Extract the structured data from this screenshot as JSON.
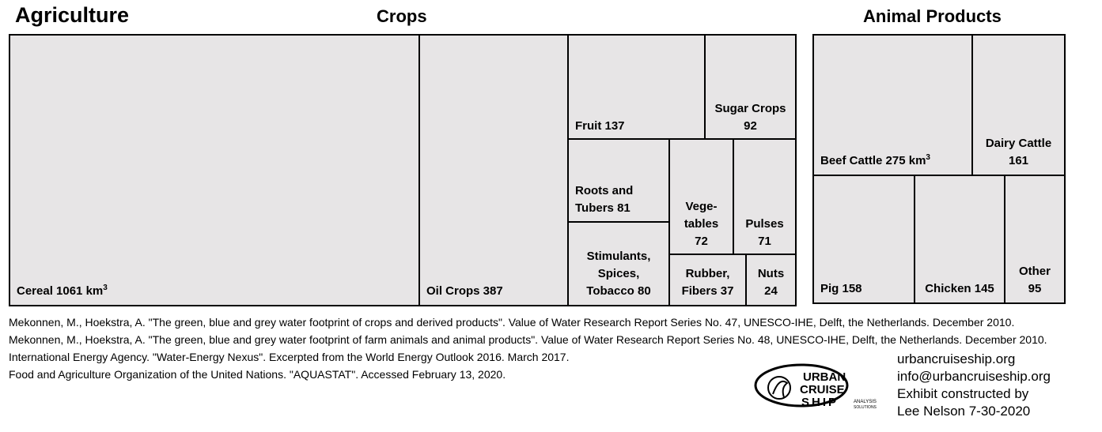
{
  "titles": {
    "agriculture": "Agriculture",
    "crops": "Crops",
    "animal_products": "Animal Products"
  },
  "unit": "km",
  "unit_exp": "3",
  "chart_data": [
    {
      "type": "treemap",
      "title": "Crops",
      "items": [
        {
          "name": "Cereal",
          "value": 1061,
          "label_lines": [
            "Cereal 1061"
          ]
        },
        {
          "name": "Oil Crops",
          "value": 387,
          "label_lines": [
            "Oil Crops 387"
          ]
        },
        {
          "name": "Fruit",
          "value": 137,
          "label_lines": [
            "Fruit 137"
          ]
        },
        {
          "name": "Sugar Crops",
          "value": 92,
          "label_lines": [
            "Sugar Crops",
            "92"
          ]
        },
        {
          "name": "Roots and Tubers",
          "value": 81,
          "label_lines": [
            "Roots and",
            "Tubers 81"
          ]
        },
        {
          "name": "Vegetables",
          "value": 72,
          "label_lines": [
            "Vege-",
            "tables",
            "72"
          ]
        },
        {
          "name": "Pulses",
          "value": 71,
          "label_lines": [
            "Pulses",
            "71"
          ]
        },
        {
          "name": "Stimulants, Spices, Tobacco",
          "value": 80,
          "label_lines": [
            "Stimulants,",
            "Spices,",
            "Tobacco 80"
          ]
        },
        {
          "name": "Rubber, Fibers",
          "value": 37,
          "label_lines": [
            "Rubber,",
            "Fibers 37"
          ]
        },
        {
          "name": "Nuts",
          "value": 24,
          "label_lines": [
            "Nuts",
            "24"
          ]
        }
      ]
    },
    {
      "type": "treemap",
      "title": "Animal Products",
      "items": [
        {
          "name": "Beef Cattle",
          "value": 275,
          "label_lines": [
            "Beef Cattle 275"
          ]
        },
        {
          "name": "Dairy Cattle",
          "value": 161,
          "label_lines": [
            "Dairy Cattle",
            "161"
          ]
        },
        {
          "name": "Pig",
          "value": 158,
          "label_lines": [
            "Pig 158"
          ]
        },
        {
          "name": "Chicken",
          "value": 145,
          "label_lines": [
            "Chicken 145"
          ]
        },
        {
          "name": "Other",
          "value": 95,
          "label_lines": [
            "Other",
            "95"
          ]
        }
      ]
    }
  ],
  "sources": [
    "Mekonnen, M., Hoekstra, A. \"The green, blue and grey water footprint of crops and derived products\". Value of Water Research Report Series No. 47, UNESCO-IHE, Delft, the Netherlands. December 2010.",
    "Mekonnen, M., Hoekstra, A. \"The green, blue and grey water footprint of farm animals and animal products\". Value of Water Research Report Series No. 48, UNESCO-IHE, Delft, the Netherlands. December 2010.",
    "International Energy Agency. \"Water-Energy Nexus\". Excerpted from the World Energy Outlook 2016. March 2017.",
    "Food and Agriculture Organization of the United Nations. \"AQUASTAT\". Accessed February 13, 2020."
  ],
  "contact": [
    "urbancruiseship.org",
    "info@urbancruiseship.org",
    "Exhibit constructed by",
    "Lee Nelson 7-30-2020"
  ],
  "logo": {
    "line1": "URBAN",
    "line2": "CRUISE",
    "line3": "SHIP",
    "tag1": "ANALYSIS",
    "tag2": "SOLUTIONS"
  }
}
